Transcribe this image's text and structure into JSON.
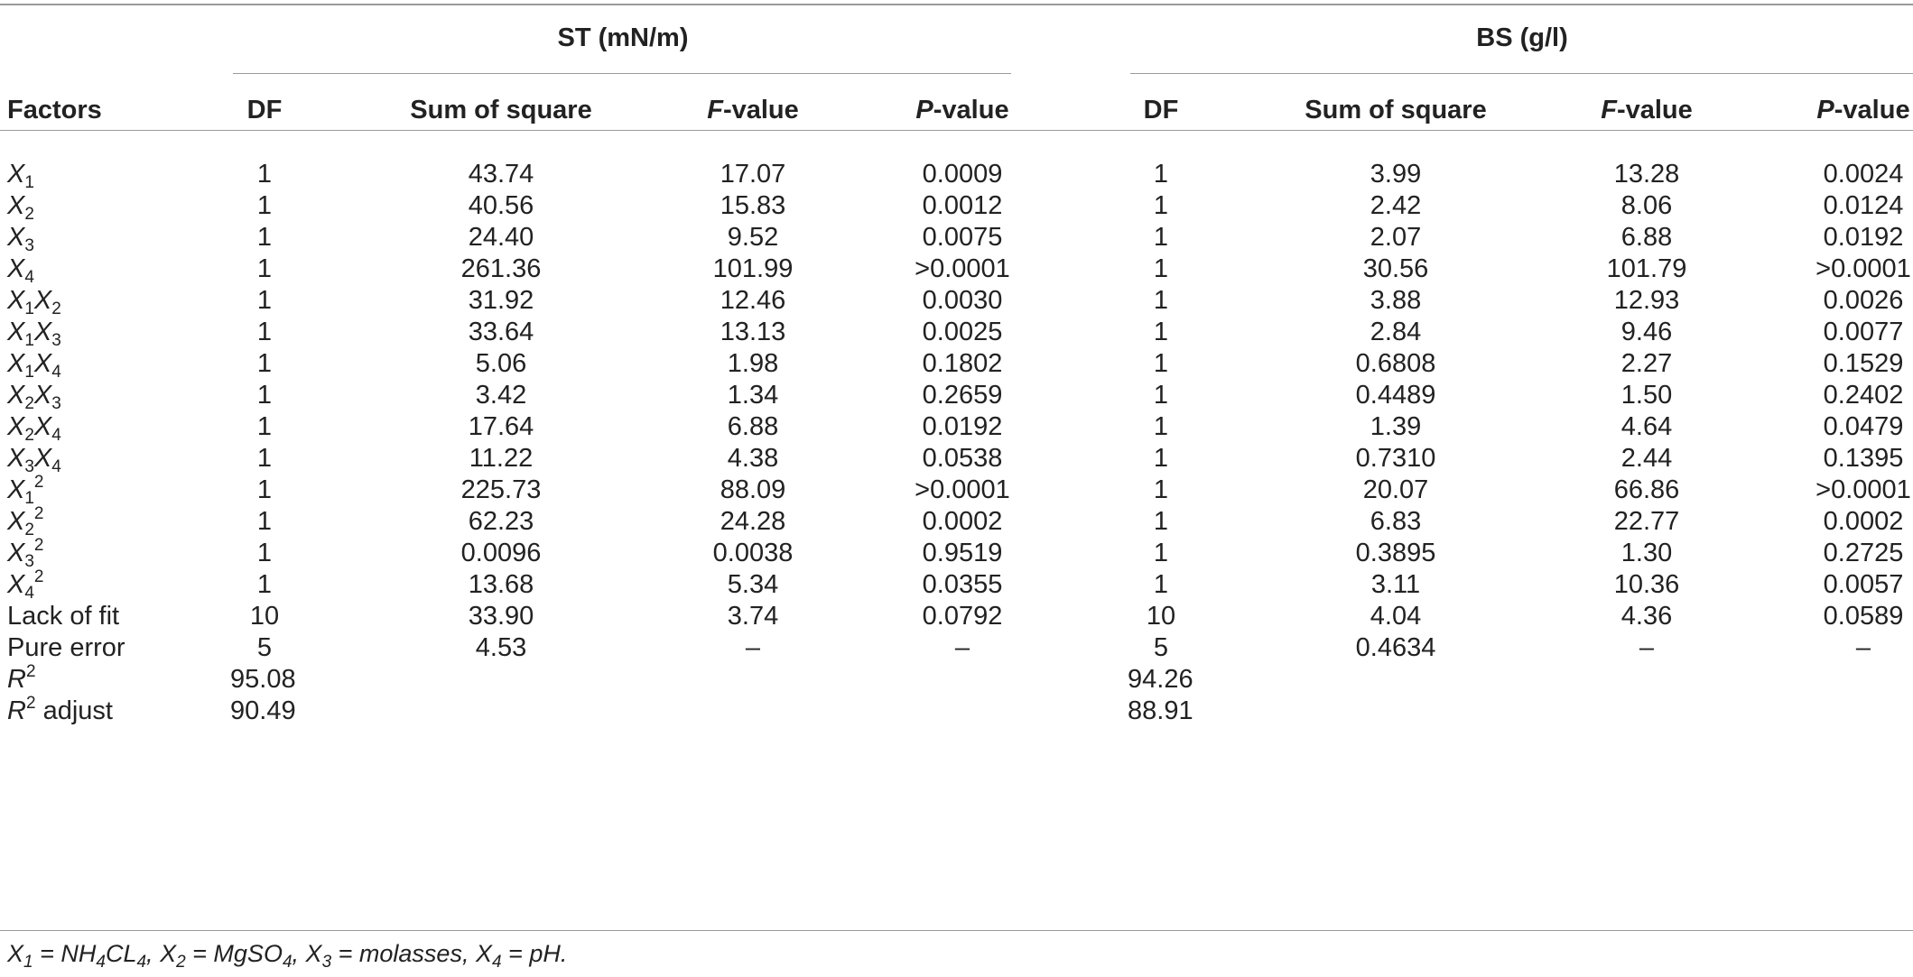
{
  "groups": [
    {
      "label": "ST (mN/m)"
    },
    {
      "label": "BS (g/l)"
    }
  ],
  "headers": {
    "factors": "Factors",
    "df": "DF",
    "sum_of_square": "Sum of square",
    "f_value": "F-value",
    "p_value": "P-value"
  },
  "rows": [
    {
      "factor": [
        {
          "v": "X",
          "s": "1"
        }
      ],
      "st": [
        "1",
        "43.74",
        "17.07",
        "0.0009"
      ],
      "bs": [
        "1",
        "3.99",
        "13.28",
        "0.0024"
      ]
    },
    {
      "factor": [
        {
          "v": "X",
          "s": "2"
        }
      ],
      "st": [
        "1",
        "40.56",
        "15.83",
        "0.0012"
      ],
      "bs": [
        "1",
        "2.42",
        "8.06",
        "0.0124"
      ]
    },
    {
      "factor": [
        {
          "v": "X",
          "s": "3"
        }
      ],
      "st": [
        "1",
        "24.40",
        "9.52",
        "0.0075"
      ],
      "bs": [
        "1",
        "2.07",
        "6.88",
        "0.0192"
      ]
    },
    {
      "factor": [
        {
          "v": "X",
          "s": "4"
        }
      ],
      "st": [
        "1",
        "261.36",
        "101.99",
        ">0.0001"
      ],
      "bs": [
        "1",
        "30.56",
        "101.79",
        ">0.0001"
      ]
    },
    {
      "factor": [
        {
          "v": "X",
          "s": "1"
        },
        {
          "v": "X",
          "s": "2"
        }
      ],
      "st": [
        "1",
        "31.92",
        "12.46",
        "0.0030"
      ],
      "bs": [
        "1",
        "3.88",
        "12.93",
        "0.0026"
      ]
    },
    {
      "factor": [
        {
          "v": "X",
          "s": "1"
        },
        {
          "v": "X",
          "s": "3"
        }
      ],
      "st": [
        "1",
        "33.64",
        "13.13",
        "0.0025"
      ],
      "bs": [
        "1",
        "2.84",
        "9.46",
        "0.0077"
      ]
    },
    {
      "factor": [
        {
          "v": "X",
          "s": "1"
        },
        {
          "v": "X",
          "s": "4"
        }
      ],
      "st": [
        "1",
        "5.06",
        "1.98",
        "0.1802"
      ],
      "bs": [
        "1",
        "0.6808",
        "2.27",
        "0.1529"
      ]
    },
    {
      "factor": [
        {
          "v": "X",
          "s": "2"
        },
        {
          "v": "X",
          "s": "3"
        }
      ],
      "st": [
        "1",
        "3.42",
        "1.34",
        "0.2659"
      ],
      "bs": [
        "1",
        "0.4489",
        "1.50",
        "0.2402"
      ]
    },
    {
      "factor": [
        {
          "v": "X",
          "s": "2"
        },
        {
          "v": "X",
          "s": "4"
        }
      ],
      "st": [
        "1",
        "17.64",
        "6.88",
        "0.0192"
      ],
      "bs": [
        "1",
        "1.39",
        "4.64",
        "0.0479"
      ]
    },
    {
      "factor": [
        {
          "v": "X",
          "s": "3"
        },
        {
          "v": "X",
          "s": "4"
        }
      ],
      "st": [
        "1",
        "11.22",
        "4.38",
        "0.0538"
      ],
      "bs": [
        "1",
        "0.7310",
        "2.44",
        "0.1395"
      ]
    },
    {
      "factor": [
        {
          "v": "X",
          "s": "1",
          "p": "2"
        }
      ],
      "st": [
        "1",
        "225.73",
        "88.09",
        ">0.0001"
      ],
      "bs": [
        "1",
        "20.07",
        "66.86",
        ">0.0001"
      ]
    },
    {
      "factor": [
        {
          "v": "X",
          "s": "2",
          "p": "2"
        }
      ],
      "st": [
        "1",
        "62.23",
        "24.28",
        "0.0002"
      ],
      "bs": [
        "1",
        "6.83",
        "22.77",
        "0.0002"
      ]
    },
    {
      "factor": [
        {
          "v": "X",
          "s": "3",
          "p": "2"
        }
      ],
      "st": [
        "1",
        "0.0096",
        "0.0038",
        "0.9519"
      ],
      "bs": [
        "1",
        "0.3895",
        "1.30",
        "0.2725"
      ]
    },
    {
      "factor": [
        {
          "v": "X",
          "s": "4",
          "p": "2"
        }
      ],
      "st": [
        "1",
        "13.68",
        "5.34",
        "0.0355"
      ],
      "bs": [
        "1",
        "3.11",
        "10.36",
        "0.0057"
      ]
    },
    {
      "factor": [
        {
          "t": "Lack of fit"
        }
      ],
      "st": [
        "10",
        "33.90",
        "3.74",
        "0.0792"
      ],
      "bs": [
        "10",
        "4.04",
        "4.36",
        "0.0589"
      ]
    },
    {
      "factor": [
        {
          "t": "Pure error"
        }
      ],
      "st": [
        "5",
        "4.53",
        "–",
        "–"
      ],
      "bs": [
        "5",
        "0.4634",
        "–",
        "–"
      ]
    },
    {
      "factor": [
        {
          "v": "R",
          "p": "2"
        }
      ],
      "st": [
        "95.08",
        "",
        "",
        ""
      ],
      "bs": [
        "94.26",
        "",
        "",
        ""
      ]
    },
    {
      "factor": [
        {
          "v": "R",
          "p": "2"
        },
        {
          "t": " adjust"
        }
      ],
      "st": [
        "90.49",
        "",
        "",
        ""
      ],
      "bs": [
        "88.91",
        "",
        "",
        ""
      ]
    }
  ],
  "footnote": [
    {
      "v": "X",
      "s": "1"
    },
    {
      "t": " = NH"
    },
    {
      "s": "4"
    },
    {
      "t": "CL"
    },
    {
      "s": "4"
    },
    {
      "t": ", "
    },
    {
      "v": "X",
      "s": "2"
    },
    {
      "t": " = MgSO"
    },
    {
      "s": "4"
    },
    {
      "t": ", "
    },
    {
      "v": "X",
      "s": "3"
    },
    {
      "t": " = molasses, "
    },
    {
      "v": "X",
      "s": "4"
    },
    {
      "t": " = pH."
    }
  ]
}
